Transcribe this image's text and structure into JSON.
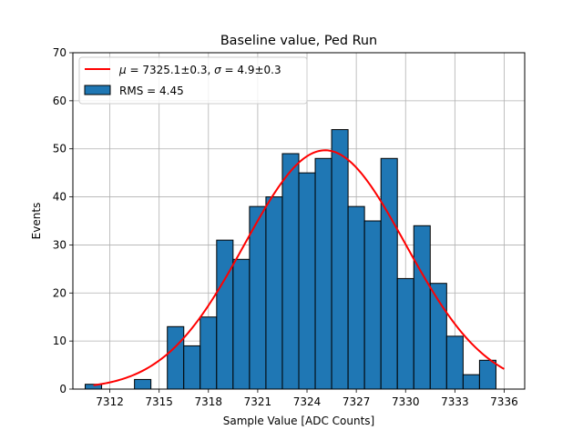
{
  "chart_data": {
    "type": "bar",
    "title": "Baseline value, Ped Run",
    "xlabel": "Sample Value [ADC Counts]",
    "ylabel": "Events",
    "xlim": [
      7309.75,
      7337.25
    ],
    "ylim": [
      0,
      70
    ],
    "grid": true,
    "legend_position": "top-left",
    "xticks": [
      7312,
      7315,
      7318,
      7321,
      7324,
      7327,
      7330,
      7333,
      7336
    ],
    "yticks": [
      0,
      10,
      20,
      30,
      40,
      50,
      60,
      70
    ],
    "histogram": {
      "name": "RMS = 4.45",
      "color": "#1f77b4",
      "edgecolor": "#000000",
      "bin_width": 1,
      "bin_centers": [
        7311,
        7312,
        7313,
        7314,
        7315,
        7316,
        7317,
        7318,
        7319,
        7320,
        7321,
        7322,
        7323,
        7324,
        7325,
        7326,
        7327,
        7328,
        7329,
        7330,
        7331,
        7332,
        7333,
        7334,
        7335
      ],
      "counts": [
        1,
        0,
        0,
        2,
        0,
        13,
        9,
        15,
        31,
        27,
        38,
        40,
        49,
        45,
        48,
        54,
        38,
        35,
        48,
        23,
        34,
        22,
        11,
        3,
        6
      ]
    },
    "fit": {
      "name": "μ = 7325.1±0.3, σ = 4.9±0.3",
      "label_mu": "μ",
      "label_sigma": "σ",
      "label_rest_mu": " = 7325.1±0.3, ",
      "label_rest_sigma": " = 4.9±0.3",
      "color": "#ff0000",
      "mu": 7325.1,
      "sigma": 4.9,
      "amplitude": 49.7,
      "x_range": [
        7311,
        7336
      ]
    }
  }
}
